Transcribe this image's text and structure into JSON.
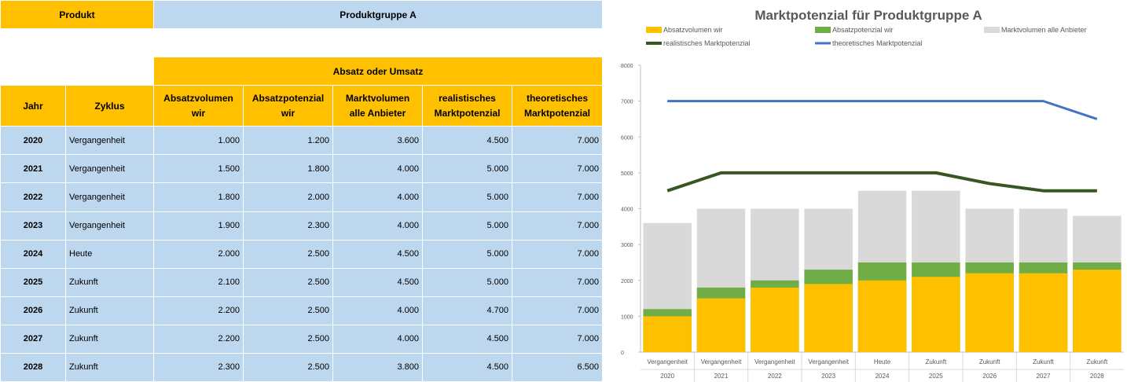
{
  "table": {
    "produkt_label": "Produkt",
    "group_name": "Produktgruppe A",
    "metric_label": "Absatz oder Umsatz",
    "headers": {
      "year": "Jahr",
      "cycle": "Zyklus",
      "c1": [
        "Absatzvolumen",
        "wir"
      ],
      "c2": [
        "Absatzpotenzial",
        "wir"
      ],
      "c3": [
        "Marktvolumen",
        "alle Anbieter"
      ],
      "c4": [
        "realistisches",
        "Marktpotenzial"
      ],
      "c5": [
        "theoretisches",
        "Marktpotenzial"
      ]
    },
    "rows": [
      {
        "year": "2020",
        "cycle": "Vergangenheit",
        "c1": "1.000",
        "c2": "1.200",
        "c3": "3.600",
        "c4": "4.500",
        "c5": "7.000"
      },
      {
        "year": "2021",
        "cycle": "Vergangenheit",
        "c1": "1.500",
        "c2": "1.800",
        "c3": "4.000",
        "c4": "5.000",
        "c5": "7.000"
      },
      {
        "year": "2022",
        "cycle": "Vergangenheit",
        "c1": "1.800",
        "c2": "2.000",
        "c3": "4.000",
        "c4": "5.000",
        "c5": "7.000"
      },
      {
        "year": "2023",
        "cycle": "Vergangenheit",
        "c1": "1.900",
        "c2": "2.300",
        "c3": "4.000",
        "c4": "5.000",
        "c5": "7.000"
      },
      {
        "year": "2024",
        "cycle": "Heute",
        "c1": "2.000",
        "c2": "2.500",
        "c3": "4.500",
        "c4": "5.000",
        "c5": "7.000"
      },
      {
        "year": "2025",
        "cycle": "Zukunft",
        "c1": "2.100",
        "c2": "2.500",
        "c3": "4.500",
        "c4": "5.000",
        "c5": "7.000"
      },
      {
        "year": "2026",
        "cycle": "Zukunft",
        "c1": "2.200",
        "c2": "2.500",
        "c3": "4.000",
        "c4": "4.700",
        "c5": "7.000"
      },
      {
        "year": "2027",
        "cycle": "Zukunft",
        "c1": "2.200",
        "c2": "2.500",
        "c3": "4.000",
        "c4": "4.500",
        "c5": "7.000"
      },
      {
        "year": "2028",
        "cycle": "Zukunft",
        "c1": "2.300",
        "c2": "2.500",
        "c3": "3.800",
        "c4": "4.500",
        "c5": "6.500"
      }
    ]
  },
  "chart_data": {
    "type": "bar",
    "title": "Marktpotenzial für Produktgruppe A",
    "categories": [
      {
        "cycle": "Vergangenheit",
        "year": "2020"
      },
      {
        "cycle": "Vergangenheit",
        "year": "2021"
      },
      {
        "cycle": "Vergangenheit",
        "year": "2022"
      },
      {
        "cycle": "Vergangenheit",
        "year": "2023"
      },
      {
        "cycle": "Heute",
        "year": "2024"
      },
      {
        "cycle": "Zukunft",
        "year": "2025"
      },
      {
        "cycle": "Zukunft",
        "year": "2026"
      },
      {
        "cycle": "Zukunft",
        "year": "2027"
      },
      {
        "cycle": "Zukunft",
        "year": "2028"
      }
    ],
    "ylim": [
      0,
      8000
    ],
    "yticks": [
      "0",
      "1000",
      "2000",
      "3000",
      "4000",
      "5000",
      "6000",
      "7000",
      "8000"
    ],
    "grid": false,
    "legend_position": "top",
    "overlap_bars": true,
    "series": [
      {
        "name": "Absatzvolumen wir",
        "kind": "bar",
        "color": "#ffc000",
        "values": [
          1000,
          1500,
          1800,
          1900,
          2000,
          2100,
          2200,
          2200,
          2300
        ]
      },
      {
        "name": "Absatzpotenzial wir",
        "kind": "bar",
        "color": "#70ad47",
        "values": [
          1200,
          1800,
          2000,
          2300,
          2500,
          2500,
          2500,
          2500,
          2500
        ]
      },
      {
        "name": "Marktvolumen alle Anbieter",
        "kind": "bar",
        "color": "#d9d9d9",
        "values": [
          3600,
          4000,
          4000,
          4000,
          4500,
          4500,
          4000,
          4000,
          3800
        ]
      },
      {
        "name": "realistisches Marktpotenzial",
        "kind": "line",
        "color": "#375623",
        "values": [
          4500,
          5000,
          5000,
          5000,
          5000,
          5000,
          4700,
          4500,
          4500
        ]
      },
      {
        "name": "theoretisches Marktpotenzial",
        "kind": "line",
        "color": "#4472c4",
        "values": [
          7000,
          7000,
          7000,
          7000,
          7000,
          7000,
          7000,
          7000,
          6500
        ]
      }
    ]
  }
}
